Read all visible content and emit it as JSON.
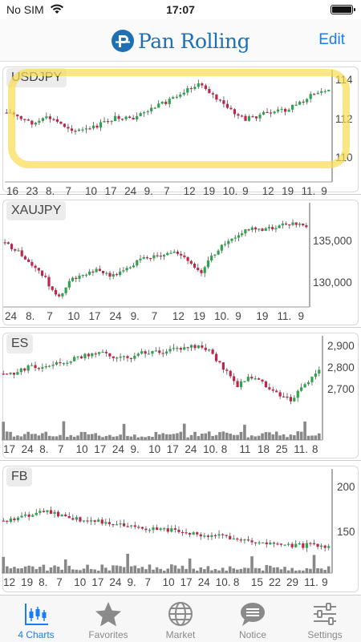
{
  "status_bar": {
    "carrier": "No SIM",
    "time": "17:07"
  },
  "nav": {
    "logo_text": "Pan Rolling",
    "edit_label": "Edit"
  },
  "charts": [
    {
      "symbol": "USDJPY",
      "x_labels": [
        "16",
        "23",
        "8.",
        "7",
        "10",
        "17",
        "24",
        "9.",
        "7",
        "12",
        "19",
        "10.",
        "9",
        "12",
        "19",
        "11.",
        "9"
      ],
      "y_labels": [
        "114",
        "112",
        "110"
      ],
      "highlighted": true
    },
    {
      "symbol": "XAUJPY",
      "x_labels": [
        "24",
        "8.",
        "7",
        "10",
        "17",
        "24",
        "9.",
        "7",
        "12",
        "19",
        "10.",
        "9",
        "19",
        "11.",
        "9"
      ],
      "y_labels": [
        "135,000",
        "130,000"
      ],
      "highlighted": false
    },
    {
      "symbol": "ES",
      "x_labels": [
        "17",
        "24",
        "8.",
        "7",
        "10",
        "17",
        "24",
        "9.",
        "10",
        "17",
        "24",
        "10.",
        "8",
        "11",
        "18",
        "25",
        "11.",
        "8"
      ],
      "y_labels": [
        "2,900",
        "2,800",
        "2,700"
      ],
      "highlighted": false
    },
    {
      "symbol": "FB",
      "x_labels": [
        "12",
        "19",
        "8.",
        "7",
        "10",
        "17",
        "24",
        "9.",
        "7",
        "10",
        "17",
        "24",
        "10.",
        "8",
        "15",
        "22",
        "29",
        "11.",
        "9"
      ],
      "y_labels": [
        "200",
        "150"
      ],
      "highlighted": false
    }
  ],
  "tabs": [
    {
      "label": "4 Charts",
      "icon": "candlestick-chart-icon",
      "active": true
    },
    {
      "label": "Favorites",
      "icon": "star-icon",
      "active": false
    },
    {
      "label": "Market",
      "icon": "globe-icon",
      "active": false
    },
    {
      "label": "Notice",
      "icon": "speech-bubble-icon",
      "active": false
    },
    {
      "label": "Settings",
      "icon": "sliders-icon",
      "active": false
    }
  ],
  "colors": {
    "up": "#2ea44f",
    "down": "#c0264b",
    "accent": "#1a7cf3",
    "highlight": "#fadc50",
    "logo": "#1f6fb5"
  }
}
